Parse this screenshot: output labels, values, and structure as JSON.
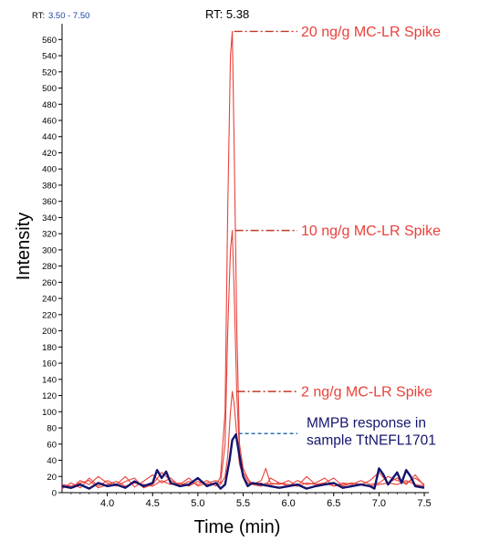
{
  "chart_data": {
    "type": "line",
    "range_label": {
      "prefix": "RT:",
      "value": "3.50 - 7.50"
    },
    "xlabel": "Time (min)",
    "ylabel": "Intensity",
    "xlim": [
      3.5,
      7.55
    ],
    "ylim": [
      0,
      575
    ],
    "x_ticks": [
      "4.0",
      "4.5",
      "5.0",
      "5.5",
      "6.0",
      "6.5",
      "7.0",
      "7.5"
    ],
    "y_ticks": [
      0,
      20,
      40,
      60,
      80,
      100,
      120,
      140,
      160,
      180,
      200,
      220,
      240,
      260,
      280,
      300,
      320,
      340,
      360,
      380,
      400,
      420,
      440,
      460,
      480,
      500,
      520,
      540,
      560
    ],
    "peak_label": "RT: 5.38",
    "annotations": [
      {
        "text": "20 ng/g MC-LR Spike",
        "y": 570
      },
      {
        "text": "10 ng/g MC-LR Spike",
        "y": 324
      },
      {
        "text": "2 ng/g MC-LR Spike",
        "y": 125
      },
      {
        "text": "MMPB response in sample TtNEFL1701",
        "lines": [
          "MMPB response in",
          "sample TtNEFL1701"
        ],
        "y": 73
      }
    ],
    "colors": {
      "spike": "#e8413a",
      "spike_line": "#c0392b",
      "sample": "#14146e",
      "sample_dash": "#2e6fb5"
    },
    "series": [
      {
        "x": [
          3.5,
          3.6,
          3.7,
          3.8,
          3.9,
          4.0,
          4.1,
          4.2,
          4.3,
          4.4,
          4.5,
          4.6,
          4.7,
          4.8,
          4.9,
          5.0,
          5.1,
          5.2,
          5.25,
          5.3,
          5.33,
          5.36,
          5.38,
          5.4,
          5.43,
          5.46,
          5.5,
          5.55,
          5.6,
          5.7,
          5.75,
          5.8,
          5.9,
          6.0,
          6.1,
          6.2,
          6.3,
          6.4,
          6.5,
          6.6,
          6.7,
          6.8,
          6.9,
          7.0,
          7.1,
          7.2,
          7.3,
          7.4,
          7.5
        ],
        "values": [
          5,
          12,
          6,
          18,
          8,
          15,
          10,
          20,
          7,
          14,
          22,
          12,
          18,
          8,
          14,
          10,
          15,
          8,
          20,
          100,
          350,
          540,
          570,
          430,
          200,
          60,
          30,
          18,
          10,
          15,
          30,
          12,
          10,
          15,
          8,
          20,
          10,
          12,
          18,
          8,
          12,
          10,
          15,
          25,
          12,
          18,
          10,
          22,
          8
        ]
      },
      {
        "x": [
          3.5,
          3.6,
          3.7,
          3.8,
          3.9,
          4.0,
          4.1,
          4.2,
          4.3,
          4.4,
          4.5,
          4.6,
          4.7,
          4.8,
          4.9,
          5.0,
          5.1,
          5.2,
          5.25,
          5.3,
          5.33,
          5.36,
          5.38,
          5.4,
          5.43,
          5.46,
          5.5,
          5.55,
          5.6,
          5.7,
          5.75,
          5.8,
          5.9,
          6.0,
          6.1,
          6.2,
          6.3,
          6.4,
          6.5,
          6.6,
          6.7,
          6.8,
          6.9,
          7.0,
          7.1,
          7.2,
          7.3,
          7.4,
          7.5
        ],
        "values": [
          8,
          5,
          15,
          10,
          20,
          12,
          8,
          14,
          18,
          6,
          10,
          25,
          15,
          10,
          18,
          8,
          12,
          15,
          12,
          60,
          200,
          300,
          324,
          250,
          120,
          50,
          25,
          15,
          10,
          12,
          8,
          18,
          12,
          8,
          15,
          10,
          12,
          18,
          8,
          12,
          10,
          15,
          10,
          12,
          20,
          15,
          12,
          18,
          10
        ]
      },
      {
        "x": [
          3.5,
          3.6,
          3.7,
          3.8,
          3.9,
          4.0,
          4.1,
          4.2,
          4.3,
          4.4,
          4.5,
          4.6,
          4.7,
          4.8,
          4.9,
          5.0,
          5.1,
          5.2,
          5.25,
          5.3,
          5.33,
          5.36,
          5.38,
          5.4,
          5.43,
          5.46,
          5.5,
          5.55,
          5.6,
          5.7,
          5.75,
          5.8,
          5.9,
          6.0,
          6.1,
          6.2,
          6.3,
          6.4,
          6.5,
          6.6,
          6.7,
          6.8,
          6.9,
          7.0,
          7.1,
          7.2,
          7.3,
          7.4,
          7.5
        ],
        "values": [
          10,
          8,
          12,
          15,
          6,
          10,
          14,
          8,
          12,
          10,
          8,
          15,
          10,
          12,
          8,
          14,
          10,
          12,
          10,
          20,
          45,
          100,
          125,
          110,
          70,
          35,
          20,
          12,
          10,
          8,
          12,
          10,
          12,
          10,
          8,
          12,
          10,
          12,
          8,
          10,
          12,
          10,
          8,
          10,
          12,
          10,
          15,
          10,
          8
        ]
      },
      {
        "x": [
          3.5,
          3.6,
          3.7,
          3.8,
          3.9,
          4.0,
          4.1,
          4.2,
          4.3,
          4.4,
          4.5,
          4.55,
          4.6,
          4.65,
          4.7,
          4.8,
          4.9,
          5.0,
          5.1,
          5.2,
          5.25,
          5.3,
          5.35,
          5.38,
          5.42,
          5.46,
          5.5,
          5.55,
          5.6,
          5.7,
          5.8,
          5.9,
          6.0,
          6.1,
          6.2,
          6.3,
          6.4,
          6.5,
          6.6,
          6.7,
          6.8,
          6.9,
          6.95,
          7.0,
          7.05,
          7.1,
          7.2,
          7.25,
          7.3,
          7.35,
          7.4,
          7.5
        ],
        "values": [
          8,
          6,
          10,
          5,
          12,
          8,
          10,
          6,
          14,
          8,
          12,
          28,
          18,
          26,
          12,
          8,
          10,
          18,
          8,
          12,
          5,
          10,
          40,
          65,
          72,
          45,
          20,
          8,
          12,
          10,
          8,
          6,
          8,
          10,
          5,
          8,
          10,
          12,
          6,
          8,
          10,
          8,
          5,
          30,
          22,
          10,
          25,
          12,
          28,
          20,
          8,
          6
        ]
      }
    ]
  }
}
